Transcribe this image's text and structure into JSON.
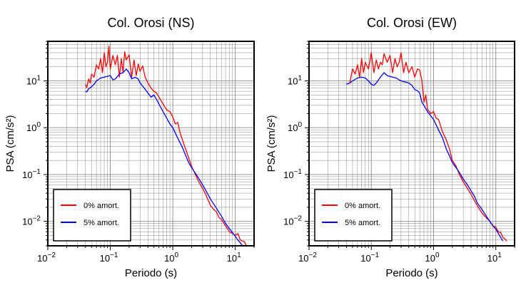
{
  "chart_data": [
    {
      "type": "line",
      "title": "Col. Orosi (NS)",
      "xlabel": "Periodo (s)",
      "ylabel": "PSA (cm/s²)",
      "x_scale": "log",
      "y_scale": "log",
      "xlim": [
        0.01,
        20
      ],
      "ylim": [
        0.003,
        70
      ],
      "grid": true,
      "legend_position": "bottom-left",
      "x_ticks": [
        {
          "base": "10",
          "exp": "−2"
        },
        {
          "base": "10",
          "exp": "−1"
        },
        {
          "base": "10",
          "exp": "0"
        },
        {
          "base": "10",
          "exp": "1"
        }
      ],
      "y_ticks": [
        {
          "base": "10",
          "exp": "−2"
        },
        {
          "base": "10",
          "exp": "−1"
        },
        {
          "base": "10",
          "exp": "0"
        },
        {
          "base": "10",
          "exp": "1"
        }
      ],
      "series": [
        {
          "name": "0% amort.",
          "color": "#ff0000",
          "points": [
            [
              0.04,
              8.5
            ],
            [
              0.042,
              7.2
            ],
            [
              0.045,
              11
            ],
            [
              0.048,
              9
            ],
            [
              0.05,
              14
            ],
            [
              0.055,
              12
            ],
            [
              0.06,
              22
            ],
            [
              0.065,
              18
            ],
            [
              0.07,
              30
            ],
            [
              0.075,
              15
            ],
            [
              0.08,
              40
            ],
            [
              0.085,
              20
            ],
            [
              0.09,
              25
            ],
            [
              0.095,
              55
            ],
            [
              0.1,
              18
            ],
            [
              0.11,
              35
            ],
            [
              0.12,
              22
            ],
            [
              0.13,
              35
            ],
            [
              0.14,
              12
            ],
            [
              0.15,
              30
            ],
            [
              0.16,
              15
            ],
            [
              0.17,
              42
            ],
            [
              0.18,
              28
            ],
            [
              0.2,
              36
            ],
            [
              0.22,
              12
            ],
            [
              0.24,
              28
            ],
            [
              0.26,
              13
            ],
            [
              0.28,
              23
            ],
            [
              0.3,
              16
            ],
            [
              0.33,
              21
            ],
            [
              0.36,
              12
            ],
            [
              0.4,
              9
            ],
            [
              0.45,
              7
            ],
            [
              0.5,
              6
            ],
            [
              0.55,
              5.5
            ],
            [
              0.6,
              4.5
            ],
            [
              0.7,
              3.2
            ],
            [
              0.8,
              2.4
            ],
            [
              0.9,
              2.2
            ],
            [
              1.0,
              1.7
            ],
            [
              1.1,
              1.2
            ],
            [
              1.2,
              1.3
            ],
            [
              1.3,
              0.8
            ],
            [
              1.5,
              0.45
            ],
            [
              1.7,
              0.28
            ],
            [
              2.0,
              0.15
            ],
            [
              2.3,
              0.1
            ],
            [
              2.6,
              0.07
            ],
            [
              3.0,
              0.05
            ],
            [
              3.3,
              0.04
            ],
            [
              3.7,
              0.028
            ],
            [
              4.0,
              0.022
            ],
            [
              4.5,
              0.018
            ],
            [
              5.0,
              0.016
            ],
            [
              5.5,
              0.012
            ],
            [
              6.0,
              0.011
            ],
            [
              7.0,
              0.008
            ],
            [
              8.0,
              0.006
            ],
            [
              9.0,
              0.0055
            ],
            [
              10.0,
              0.005
            ],
            [
              11.0,
              0.0055
            ],
            [
              12.0,
              0.004
            ],
            [
              13.0,
              0.0038
            ],
            [
              14.0,
              0.0037
            ],
            [
              15.0,
              0.003
            ]
          ]
        },
        {
          "name": "5% amort.",
          "color": "#0000ff",
          "points": [
            [
              0.04,
              6
            ],
            [
              0.042,
              5.8
            ],
            [
              0.045,
              6.8
            ],
            [
              0.05,
              7.5
            ],
            [
              0.055,
              8.5
            ],
            [
              0.06,
              10
            ],
            [
              0.07,
              11.5
            ],
            [
              0.08,
              12
            ],
            [
              0.09,
              12.5
            ],
            [
              0.1,
              13
            ],
            [
              0.11,
              10.5
            ],
            [
              0.12,
              11
            ],
            [
              0.14,
              14
            ],
            [
              0.16,
              15
            ],
            [
              0.18,
              18
            ],
            [
              0.2,
              15
            ],
            [
              0.22,
              11
            ],
            [
              0.25,
              12
            ],
            [
              0.28,
              11
            ],
            [
              0.3,
              9
            ],
            [
              0.35,
              7
            ],
            [
              0.4,
              5.5
            ],
            [
              0.45,
              4.5
            ],
            [
              0.5,
              5
            ],
            [
              0.55,
              4
            ],
            [
              0.6,
              3.2
            ],
            [
              0.7,
              2.2
            ],
            [
              0.8,
              1.6
            ],
            [
              0.9,
              1.2
            ],
            [
              1.0,
              1.0
            ],
            [
              1.2,
              0.6
            ],
            [
              1.4,
              0.4
            ],
            [
              1.6,
              0.26
            ],
            [
              1.8,
              0.18
            ],
            [
              2.0,
              0.14
            ],
            [
              2.5,
              0.09
            ],
            [
              3.0,
              0.06
            ],
            [
              3.5,
              0.042
            ],
            [
              4.0,
              0.03
            ],
            [
              5.0,
              0.019
            ],
            [
              6.0,
              0.013
            ],
            [
              7.0,
              0.009
            ],
            [
              8.0,
              0.007
            ],
            [
              9.0,
              0.0058
            ],
            [
              10.0,
              0.0048
            ],
            [
              11.0,
              0.004
            ],
            [
              12.0,
              0.0035
            ],
            [
              13.0,
              0.003
            ]
          ]
        }
      ]
    },
    {
      "type": "line",
      "title": "Col. Orosi (EW)",
      "xlabel": "Periodo (s)",
      "ylabel": "PSA (cm/s²)",
      "x_scale": "log",
      "y_scale": "log",
      "xlim": [
        0.01,
        20
      ],
      "ylim": [
        0.003,
        70
      ],
      "grid": true,
      "legend_position": "bottom-left",
      "x_ticks": [
        {
          "base": "10",
          "exp": "−2"
        },
        {
          "base": "10",
          "exp": "−1"
        },
        {
          "base": "10",
          "exp": "0"
        },
        {
          "base": "10",
          "exp": "1"
        }
      ],
      "y_ticks": [
        {
          "base": "10",
          "exp": "−2"
        },
        {
          "base": "10",
          "exp": "−1"
        },
        {
          "base": "10",
          "exp": "0"
        },
        {
          "base": "10",
          "exp": "1"
        }
      ],
      "series": [
        {
          "name": "0% amort.",
          "color": "#ff0000",
          "points": [
            [
              0.04,
              8.5
            ],
            [
              0.045,
              9
            ],
            [
              0.05,
              18
            ],
            [
              0.055,
              14
            ],
            [
              0.06,
              22
            ],
            [
              0.065,
              12
            ],
            [
              0.07,
              30
            ],
            [
              0.075,
              15
            ],
            [
              0.08,
              25
            ],
            [
              0.09,
              18
            ],
            [
              0.1,
              40
            ],
            [
              0.11,
              15
            ],
            [
              0.12,
              28
            ],
            [
              0.13,
              18
            ],
            [
              0.14,
              25
            ],
            [
              0.15,
              22
            ],
            [
              0.16,
              38
            ],
            [
              0.18,
              25
            ],
            [
              0.2,
              35
            ],
            [
              0.22,
              15
            ],
            [
              0.24,
              30
            ],
            [
              0.26,
              20
            ],
            [
              0.28,
              25
            ],
            [
              0.3,
              40
            ],
            [
              0.33,
              15
            ],
            [
              0.36,
              25
            ],
            [
              0.4,
              15
            ],
            [
              0.45,
              20
            ],
            [
              0.5,
              12
            ],
            [
              0.55,
              18
            ],
            [
              0.6,
              17
            ],
            [
              0.65,
              10
            ],
            [
              0.7,
              3.5
            ],
            [
              0.75,
              5
            ],
            [
              0.8,
              2.5
            ],
            [
              0.9,
              2
            ],
            [
              1.0,
              2.2
            ],
            [
              1.1,
              1.6
            ],
            [
              1.2,
              1.5
            ],
            [
              1.4,
              0.8
            ],
            [
              1.6,
              0.55
            ],
            [
              1.8,
              0.35
            ],
            [
              2.0,
              0.2
            ],
            [
              2.3,
              0.15
            ],
            [
              2.6,
              0.1
            ],
            [
              3.0,
              0.07
            ],
            [
              3.5,
              0.05
            ],
            [
              4.0,
              0.038
            ],
            [
              4.5,
              0.028
            ],
            [
              5.0,
              0.022
            ],
            [
              6.0,
              0.015
            ],
            [
              7.0,
              0.012
            ],
            [
              8.0,
              0.01
            ],
            [
              9.0,
              0.008
            ],
            [
              10.0,
              0.0075
            ],
            [
              11.0,
              0.006
            ],
            [
              12.0,
              0.0058
            ],
            [
              13.0,
              0.0045
            ],
            [
              14.0,
              0.0042
            ],
            [
              15.0,
              0.0038
            ]
          ]
        },
        {
          "name": "5% amort.",
          "color": "#0000ff",
          "points": [
            [
              0.04,
              8.5
            ],
            [
              0.045,
              9
            ],
            [
              0.05,
              10
            ],
            [
              0.06,
              11.5
            ],
            [
              0.07,
              12
            ],
            [
              0.08,
              11.5
            ],
            [
              0.09,
              10
            ],
            [
              0.1,
              8.5
            ],
            [
              0.11,
              8
            ],
            [
              0.12,
              9
            ],
            [
              0.14,
              12
            ],
            [
              0.16,
              15
            ],
            [
              0.18,
              13
            ],
            [
              0.2,
              12.5
            ],
            [
              0.22,
              12
            ],
            [
              0.25,
              11.5
            ],
            [
              0.28,
              10.5
            ],
            [
              0.3,
              10
            ],
            [
              0.35,
              9.5
            ],
            [
              0.4,
              9
            ],
            [
              0.45,
              8
            ],
            [
              0.5,
              6.5
            ],
            [
              0.55,
              6.2
            ],
            [
              0.6,
              5.5
            ],
            [
              0.65,
              3.5
            ],
            [
              0.7,
              3
            ],
            [
              0.8,
              2.2
            ],
            [
              0.9,
              1.8
            ],
            [
              1.0,
              1.5
            ],
            [
              1.2,
              0.9
            ],
            [
              1.4,
              0.6
            ],
            [
              1.6,
              0.35
            ],
            [
              1.8,
              0.25
            ],
            [
              2.0,
              0.18
            ],
            [
              2.5,
              0.12
            ],
            [
              3.0,
              0.08
            ],
            [
              3.5,
              0.06
            ],
            [
              4.0,
              0.045
            ],
            [
              4.5,
              0.035
            ],
            [
              5.0,
              0.025
            ],
            [
              6.0,
              0.018
            ],
            [
              7.0,
              0.013
            ],
            [
              8.0,
              0.01
            ],
            [
              9.0,
              0.008
            ],
            [
              10.0,
              0.0068
            ],
            [
              11.0,
              0.0055
            ],
            [
              12.0,
              0.0045
            ],
            [
              13.0,
              0.0038
            ]
          ]
        }
      ]
    }
  ]
}
